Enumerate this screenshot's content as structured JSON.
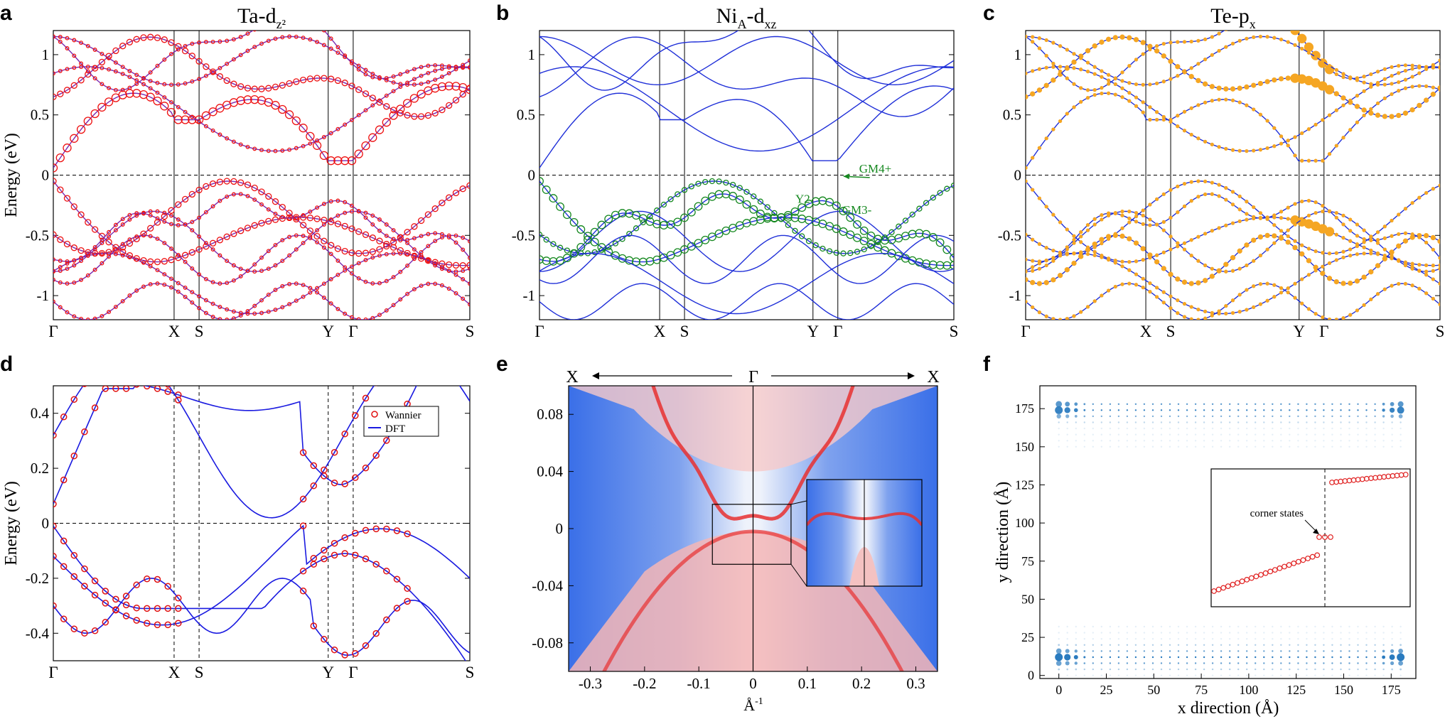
{
  "panel_labels": [
    "a",
    "b",
    "c",
    "d",
    "e",
    "f"
  ],
  "colors": {
    "band_blue": "#1f2fd8",
    "band_purple": "#7a2ab0",
    "proj_red": "#ee1111",
    "proj_green": "#15881f",
    "proj_orange": "#f5a623",
    "wannier_red": "#e01010",
    "dft_blue": "#1a1ae0",
    "map_blue": "#3a6fe8",
    "map_red": "#e83030",
    "corner_red": "#e02020",
    "dot_blue": "#2a7bbf"
  },
  "chart_data": [
    {
      "id": "a",
      "type": "line",
      "title": "Ta-d",
      "title_sub": "z²",
      "ylabel": "Energy (eV)",
      "ylim": [
        -1.2,
        1.2
      ],
      "yticks": [
        -1,
        -0.5,
        0,
        0.5,
        1
      ],
      "ytick_labels": [
        "-1",
        "-0.5",
        "0",
        "0.5",
        "1"
      ],
      "kpath_labels": [
        "Γ",
        "X",
        "S",
        "Y",
        "Γ",
        "S"
      ],
      "kpath_positions": [
        0,
        0.29,
        0.35,
        0.66,
        0.72,
        1.0
      ],
      "projection": "Ta-dz2"
    },
    {
      "id": "b",
      "type": "line",
      "title": "Ni",
      "title_sub": "A",
      "title_rest": "-d",
      "title_sub2": "xz",
      "ylim": [
        -1.2,
        1.2
      ],
      "yticks": [
        -1,
        -0.5,
        0,
        0.5,
        1
      ],
      "ytick_labels": [
        "-1",
        "-0.5",
        "0",
        "0.5",
        "1"
      ],
      "kpath_labels": [
        "Γ",
        "X",
        "S",
        "Y",
        "Γ",
        "S"
      ],
      "kpath_positions": [
        0,
        0.29,
        0.35,
        0.66,
        0.72,
        1.0
      ],
      "annotations": [
        "GM4+",
        "Y2",
        "GM3-"
      ]
    },
    {
      "id": "c",
      "type": "line",
      "title": "Te-p",
      "title_sub": "x",
      "ylim": [
        -1.2,
        1.2
      ],
      "yticks": [
        -1,
        -0.5,
        0,
        0.5,
        1
      ],
      "ytick_labels": [
        "-1",
        "-0.5",
        "0",
        "0.5",
        "1"
      ],
      "kpath_labels": [
        "Γ",
        "X",
        "S",
        "Y",
        "Γ",
        "S"
      ],
      "kpath_positions": [
        0,
        0.29,
        0.35,
        0.66,
        0.72,
        1.0
      ]
    },
    {
      "id": "d",
      "type": "scatter",
      "ylabel": "Energy (eV)",
      "ylim": [
        -0.5,
        0.5
      ],
      "yticks": [
        -0.4,
        -0.2,
        0,
        0.2,
        0.4
      ],
      "ytick_labels": [
        "-0.4",
        "-0.2",
        "0",
        "0.2",
        "0.4"
      ],
      "kpath_labels": [
        "Γ",
        "X",
        "S",
        "Y",
        "Γ",
        "S"
      ],
      "kpath_positions": [
        0,
        0.29,
        0.35,
        0.66,
        0.72,
        1.0
      ],
      "legend": [
        "Wannier",
        "DFT"
      ]
    },
    {
      "id": "e",
      "type": "heatmap",
      "xlabel": "Å",
      "xlabel_sup": "-1",
      "xlim": [
        -0.34,
        0.34
      ],
      "ylim": [
        -0.1,
        0.1
      ],
      "xticks": [
        -0.3,
        -0.2,
        -0.1,
        0,
        0.1,
        0.2,
        0.3
      ],
      "xtick_labels": [
        "-0.3",
        "-0.2",
        "-0.1",
        "0",
        "0.1",
        "0.2",
        "0.3"
      ],
      "yticks": [
        -0.08,
        -0.04,
        0,
        0.04,
        0.08
      ],
      "ytick_labels": [
        "-0.08",
        "-0.04",
        "0",
        "0.04",
        "0.08"
      ],
      "top_labels": [
        "X",
        "Γ",
        "X"
      ]
    },
    {
      "id": "f",
      "type": "scatter",
      "xlabel": "x direction (Å)",
      "ylabel": "y direction (Å)",
      "xlim": [
        -10,
        188
      ],
      "ylim": [
        -2,
        190
      ],
      "xticks": [
        0,
        25,
        50,
        75,
        100,
        125,
        150,
        175
      ],
      "xtick_labels": [
        "0",
        "25",
        "50",
        "75",
        "100",
        "125",
        "150",
        "175"
      ],
      "yticks": [
        0,
        25,
        50,
        75,
        100,
        125,
        150,
        175
      ],
      "ytick_labels": [
        "0",
        "25",
        "50",
        "75",
        "100",
        "125",
        "150",
        "175"
      ],
      "inset_annotation": "corner states"
    }
  ]
}
